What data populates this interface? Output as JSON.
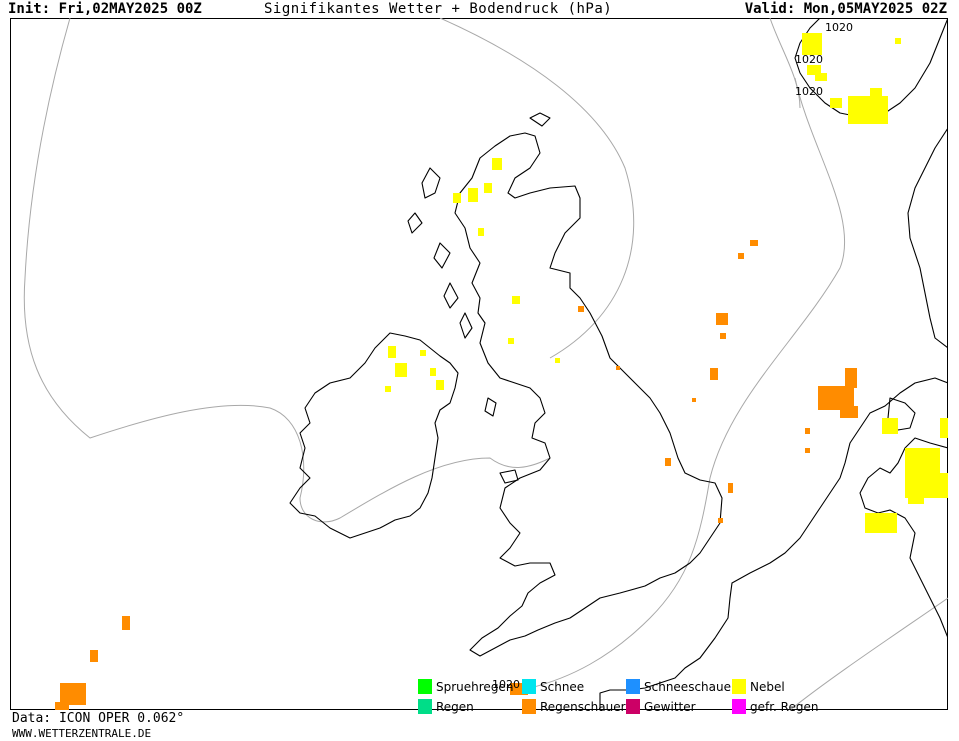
{
  "header": {
    "init": "Init: Fri,02MAY2025 00Z",
    "title": "Signifikantes Wetter + Bodendruck (hPa)",
    "valid": "Valid: Mon,05MAY2025 02Z"
  },
  "footer": {
    "data_source": "Data: ICON OPER 0.062°",
    "website": "WWW.WETTERZENTRALE.DE"
  },
  "isobar_labels": [
    "1020",
    "1020",
    "1020",
    "1020"
  ],
  "legend": [
    {
      "label": "Spruehregen",
      "color": "#00ff00"
    },
    {
      "label": "Schnee",
      "color": "#00e5ee"
    },
    {
      "label": "Schneeschauer",
      "color": "#1e90ff"
    },
    {
      "label": "Nebel",
      "color": "#ffff00"
    },
    {
      "label": "Regen",
      "color": "#00dd88"
    },
    {
      "label": "Regenschauer",
      "color": "#ff8c00"
    },
    {
      "label": "Gewitter",
      "color": "#cc0066"
    },
    {
      "label": "gefr. Regen",
      "color": "#ff00ff"
    }
  ],
  "colors": {
    "fog": "#ffff00",
    "showers": "#ff8c00",
    "coastline": "#000000",
    "isobar": "#a8a8a8"
  }
}
